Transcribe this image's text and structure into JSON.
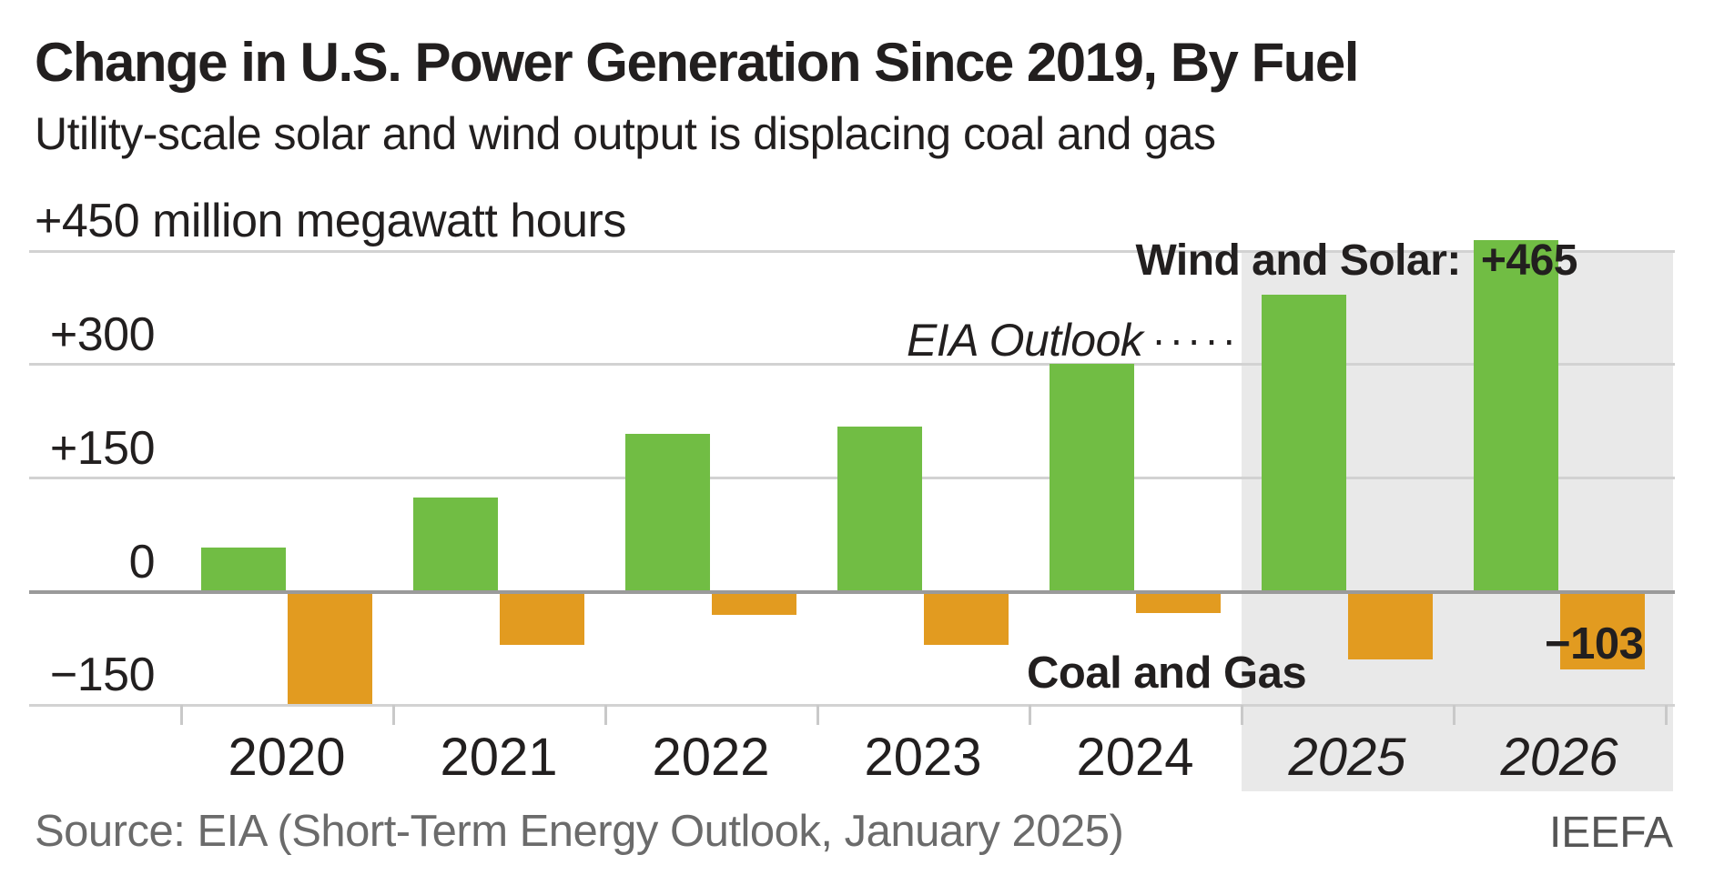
{
  "header": {
    "title": "Change in U.S. Power Generation Since 2019, By Fuel",
    "subtitle": "Utility-scale solar and wind output is displacing coal and gas"
  },
  "y_axis": {
    "ticks": [
      {
        "value": 450,
        "label": "+450 million megawatt hours",
        "align": "left"
      },
      {
        "value": 300,
        "label": "+300",
        "align": "right"
      },
      {
        "value": 150,
        "label": "+150",
        "align": "right"
      },
      {
        "value": 0,
        "label": "0",
        "align": "right"
      },
      {
        "value": -150,
        "label": "−150",
        "align": "right"
      }
    ]
  },
  "x_axis": {
    "years": [
      {
        "label": "2020",
        "forecast": false
      },
      {
        "label": "2021",
        "forecast": false
      },
      {
        "label": "2022",
        "forecast": false
      },
      {
        "label": "2023",
        "forecast": false
      },
      {
        "label": "2024",
        "forecast": false
      },
      {
        "label": "2025",
        "forecast": true
      },
      {
        "label": "2026",
        "forecast": true
      }
    ]
  },
  "annotations": {
    "wind_solar_label": "Wind and Solar:",
    "wind_solar_value": "+465",
    "outlook_label": "EIA Outlook",
    "outlook_dots": "·····",
    "coal_gas_label": "Coal and Gas",
    "coal_gas_value": "−103"
  },
  "footer": {
    "source": "Source: EIA (Short-Term Energy Outlook, January 2025)",
    "credit": "IEEFA"
  },
  "colors": {
    "wind_solar": "#71bd44",
    "coal_gas": "#e29b20",
    "forecast_band": "#e9e9e9",
    "gridline": "#d2d2d2",
    "zero_line": "#9a9a9a",
    "axis_tick": "#c9c9c9",
    "text": "#221f1f",
    "muted_text": "#6b6b6b"
  },
  "chart_data": {
    "type": "bar",
    "title": "Change in U.S. Power Generation Since 2019, By Fuel",
    "subtitle": "Utility-scale solar and wind output is displacing coal and gas",
    "unit": "million megawatt hours",
    "categories": [
      "2020",
      "2021",
      "2022",
      "2023",
      "2024",
      "2025",
      "2026"
    ],
    "series": [
      {
        "name": "Wind and Solar",
        "color": "#71bd44",
        "values": [
          58,
          125,
          209,
          218,
          301,
          392,
          465
        ]
      },
      {
        "name": "Coal and Gas",
        "color": "#e29b20",
        "values": [
          -149,
          -70,
          -31,
          -70,
          -28,
          -90,
          -103
        ]
      }
    ],
    "forecast_categories": [
      "2025",
      "2026"
    ],
    "forecast_source_label": "EIA Outlook",
    "callouts": {
      "wind_solar_2026": "+465",
      "coal_gas_2026": "−103"
    },
    "ylim": [
      -150,
      465
    ],
    "y_gridlines": [
      450,
      300,
      150,
      0,
      -150
    ],
    "grid": true,
    "legend_position": "inline-annotations"
  }
}
